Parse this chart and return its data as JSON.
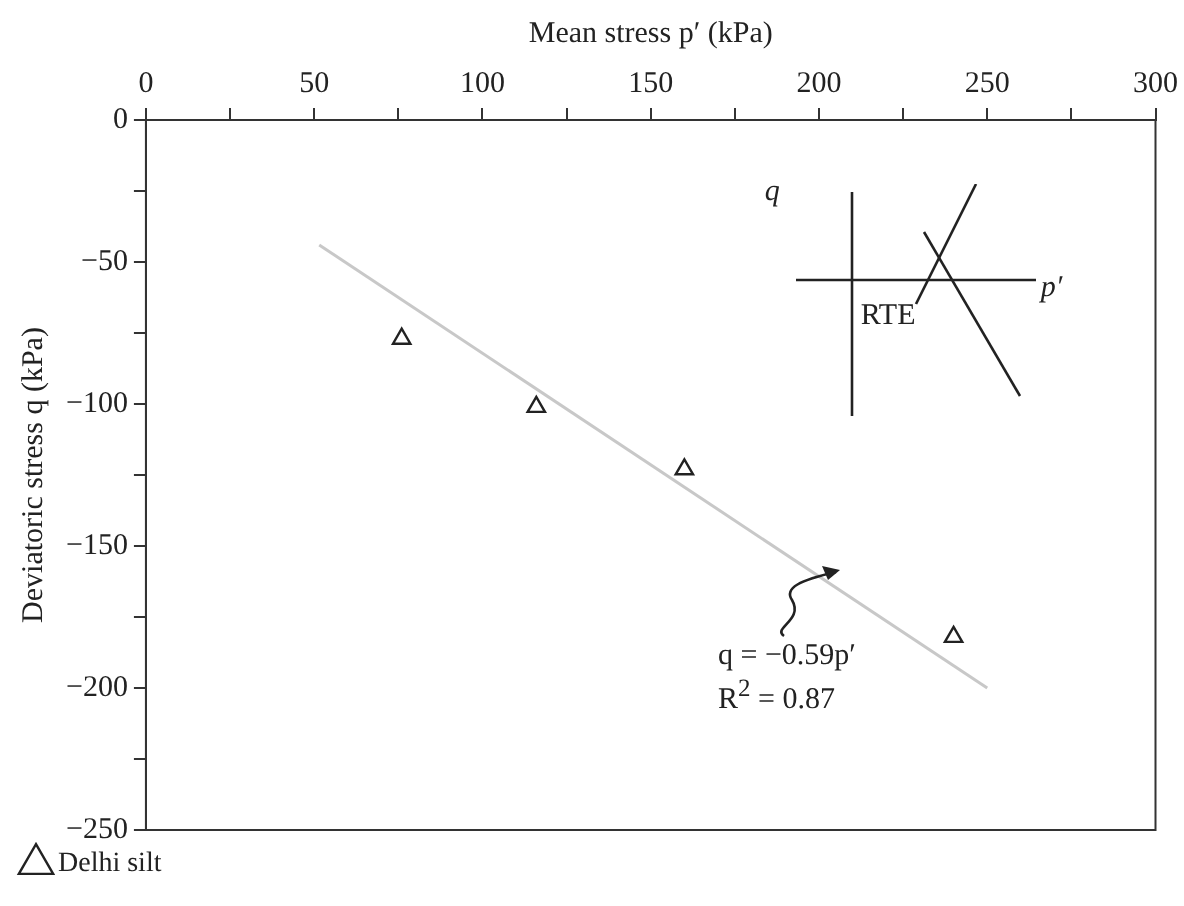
{
  "chart_data": {
    "type": "scatter",
    "xlabel": "Mean stress p′ (kPa)",
    "ylabel": "Deviatoric stress q (kPa)",
    "x": [
      76,
      116,
      160,
      240
    ],
    "series": [
      {
        "name": "Delhi silt",
        "color": "#222222",
        "marker": "triangle",
        "values": [
          -77,
          -101,
          -123,
          -182
        ]
      },
      {
        "type": "line",
        "color": "#c8c8c8",
        "x": [
          51.5,
          250
        ],
        "values": [
          -44,
          -200
        ],
        "marker": "none"
      }
    ],
    "xlim": [
      0,
      300
    ],
    "xticks": [
      0,
      {
        "value": 25,
        "label": null
      },
      50,
      {
        "value": 75,
        "label": null
      },
      100,
      {
        "value": 125,
        "label": null
      },
      150,
      {
        "value": 175,
        "label": null
      },
      200,
      {
        "value": 225,
        "label": null
      },
      250,
      {
        "value": 275,
        "label": null
      },
      300
    ],
    "ylim": [
      -250,
      0
    ],
    "yticks": [
      -250,
      {
        "value": -225,
        "label": null
      },
      -200,
      {
        "value": -175,
        "label": null
      },
      -150,
      {
        "value": -125,
        "label": null
      },
      -100,
      {
        "value": -75,
        "label": null
      },
      -50,
      {
        "value": -25,
        "label": null
      },
      0
    ],
    "grid": false,
    "legend": "bottom left",
    "annotations": [
      "q",
      "p′",
      "RTE",
      "q = −0.59p′",
      "R$^{2}$ = 0.87"
    ]
  }
}
